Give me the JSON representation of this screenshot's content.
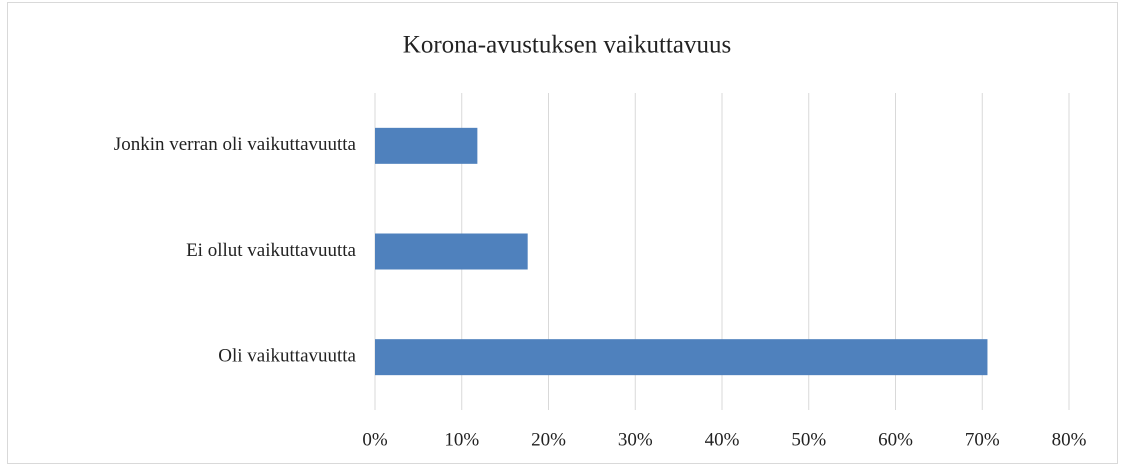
{
  "chart_data": {
    "type": "bar",
    "orientation": "horizontal",
    "title": "Korona-avustuksen vaikuttavuus",
    "categories": [
      "Jonkin verran oli vaikuttavuutta",
      "Ei ollut vaikuttavuutta",
      "Oli vaikuttavuutta"
    ],
    "values": [
      11.8,
      17.6,
      70.6
    ],
    "color": "#4f81bd",
    "xlim": [
      0,
      80
    ],
    "xticks": [
      {
        "value": 0,
        "label": "0%"
      },
      {
        "value": 10,
        "label": "10%"
      },
      {
        "value": 20,
        "label": "20%"
      },
      {
        "value": 30,
        "label": "30%"
      },
      {
        "value": 40,
        "label": "40%"
      },
      {
        "value": 50,
        "label": "50%"
      },
      {
        "value": 60,
        "label": "60%"
      },
      {
        "value": 70,
        "label": "70%"
      },
      {
        "value": 80,
        "label": "80%"
      }
    ],
    "grid": true
  }
}
